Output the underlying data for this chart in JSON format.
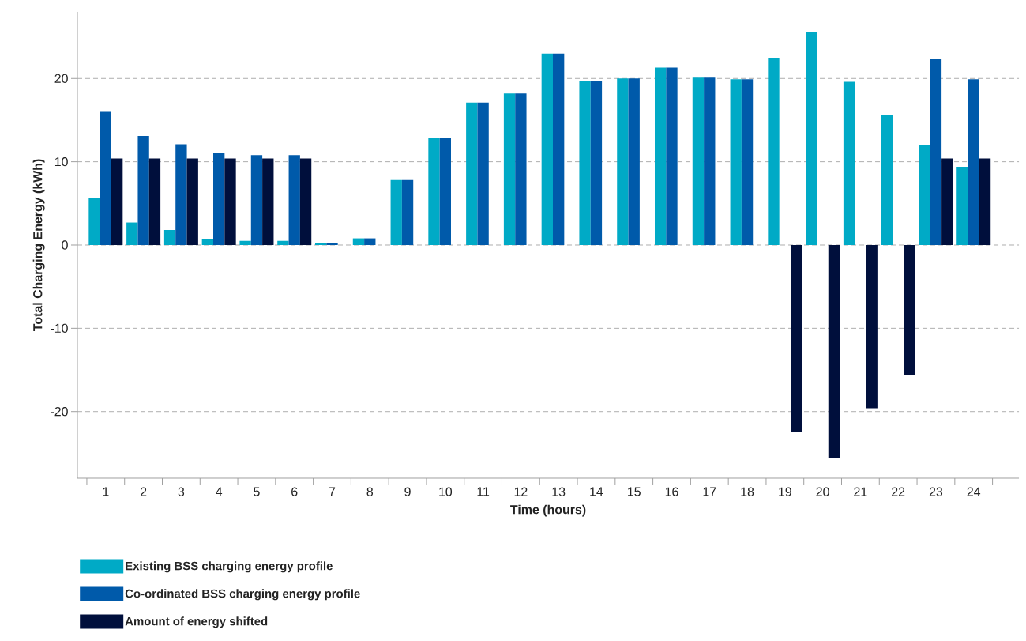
{
  "chart_data": {
    "type": "bar",
    "xlabel": "Time (hours)",
    "ylabel": "Total Charging Energy (kWh)",
    "categories": [
      "1",
      "2",
      "3",
      "4",
      "5",
      "6",
      "7",
      "8",
      "9",
      "10",
      "11",
      "12",
      "13",
      "14",
      "15",
      "16",
      "17",
      "18",
      "19",
      "20",
      "21",
      "22",
      "23",
      "24"
    ],
    "series": [
      {
        "name": "Existing BSS charging energy profile",
        "color": "#00aac6",
        "values": [
          5.6,
          2.7,
          1.8,
          0.7,
          0.5,
          0.5,
          0.2,
          0.8,
          7.8,
          12.9,
          17.1,
          18.2,
          23.0,
          19.7,
          20.0,
          21.3,
          20.1,
          19.9,
          22.5,
          25.6,
          19.6,
          15.6,
          12.0,
          9.4
        ]
      },
      {
        "name": "Co-ordinated BSS charging energy profile",
        "color": "#005aaa",
        "values": [
          16.0,
          13.1,
          12.1,
          11.0,
          10.8,
          10.8,
          0.2,
          0.8,
          7.8,
          12.9,
          17.1,
          18.2,
          23.0,
          19.7,
          20.0,
          21.3,
          20.1,
          19.9,
          null,
          null,
          null,
          null,
          22.3,
          19.9
        ]
      },
      {
        "name": "Amount of energy shifted",
        "color": "#000f3c",
        "values": [
          10.4,
          10.4,
          10.4,
          10.4,
          10.4,
          10.4,
          null,
          null,
          null,
          null,
          null,
          null,
          null,
          null,
          null,
          null,
          null,
          null,
          -22.5,
          -25.6,
          -19.6,
          -15.6,
          10.4,
          10.4
        ]
      }
    ],
    "ylim": [
      -28,
      28
    ],
    "yticks": [
      -20,
      -10,
      0,
      10,
      20
    ],
    "grid": "y",
    "legend": "bottom"
  }
}
